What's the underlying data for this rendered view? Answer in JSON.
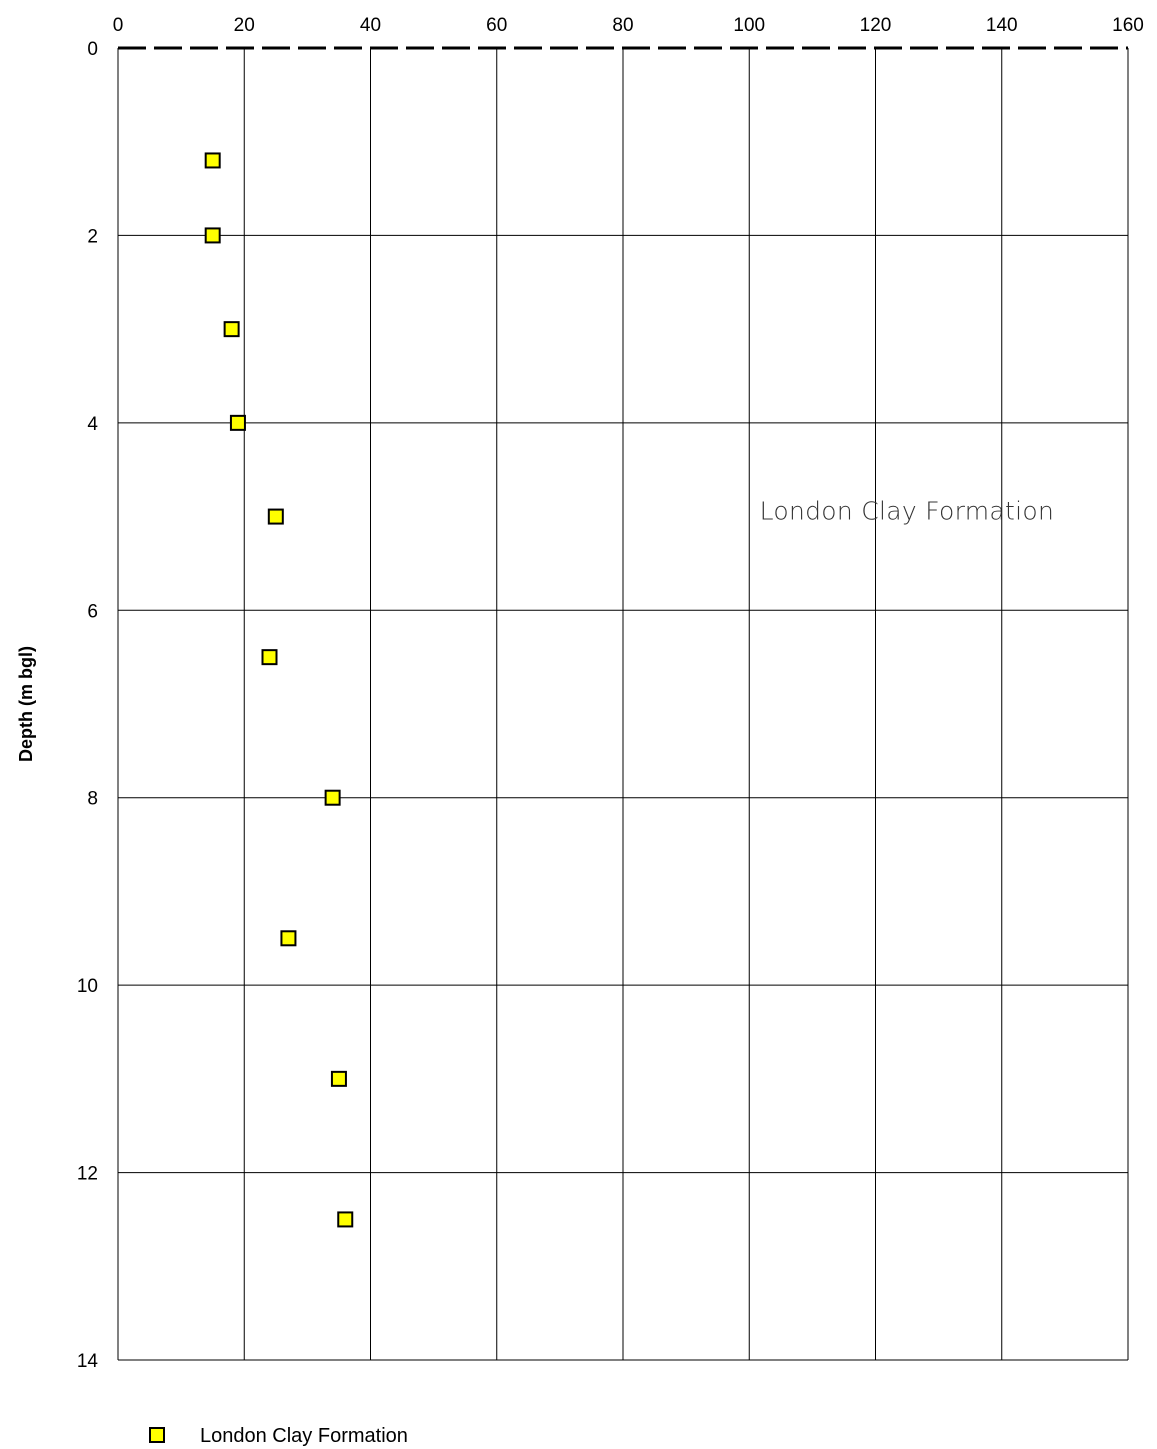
{
  "chart_data": {
    "type": "scatter",
    "title": "",
    "xlabel": "",
    "ylabel": "Depth (m bgl)",
    "x_axis_position": "top",
    "y_axis_inverted": true,
    "xlim": [
      0,
      160
    ],
    "ylim": [
      0,
      14
    ],
    "x_ticks": [
      0,
      20,
      40,
      60,
      80,
      100,
      120,
      140,
      160
    ],
    "y_ticks": [
      0,
      2,
      4,
      6,
      8,
      10,
      12,
      14
    ],
    "grid": true,
    "reference_line": {
      "y": 0,
      "style": "dashed"
    },
    "legend_placement": "bottom-left",
    "series": [
      {
        "name": "London Clay Formation",
        "marker": "square",
        "color": "#ffff00",
        "edge_color": "#000000",
        "points": [
          {
            "x": 15,
            "y": 1.2
          },
          {
            "x": 15,
            "y": 2.0
          },
          {
            "x": 18,
            "y": 3.0
          },
          {
            "x": 19,
            "y": 4.0
          },
          {
            "x": 25,
            "y": 5.0
          },
          {
            "x": 24,
            "y": 6.5
          },
          {
            "x": 34,
            "y": 8.0
          },
          {
            "x": 27,
            "y": 9.5
          },
          {
            "x": 35,
            "y": 11.0
          },
          {
            "x": 36,
            "y": 12.5
          }
        ]
      }
    ],
    "annotations": [
      {
        "text": "London Clay Formation",
        "x": 101,
        "y": 5.0
      }
    ]
  }
}
